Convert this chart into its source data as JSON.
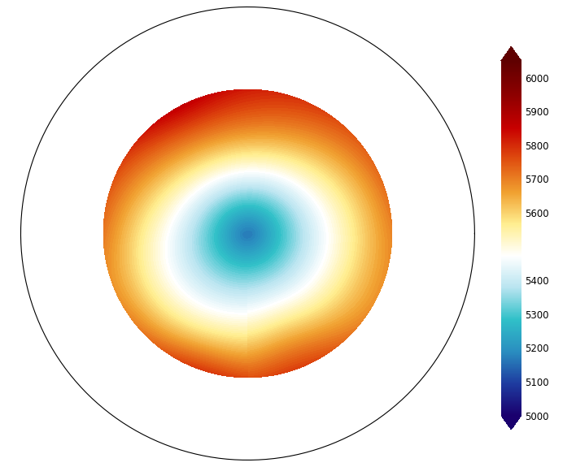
{
  "colorbar_ticks": [
    5000,
    5100,
    5200,
    5300,
    5400,
    5600,
    5700,
    5800,
    5900,
    6000
  ],
  "cmap_nodes": [
    [
      0.0,
      "#1a006e"
    ],
    [
      0.09,
      "#1e3ca0"
    ],
    [
      0.18,
      "#2a8ec0"
    ],
    [
      0.27,
      "#30c0c8"
    ],
    [
      0.36,
      "#b8e4f0"
    ],
    [
      0.45,
      "#ffffff"
    ],
    [
      0.54,
      "#ffee90"
    ],
    [
      0.63,
      "#f0a030"
    ],
    [
      0.72,
      "#e05010"
    ],
    [
      0.81,
      "#c80000"
    ],
    [
      0.9,
      "#900000"
    ],
    [
      1.0,
      "#600000"
    ]
  ],
  "vmin": 5000,
  "vmax": 6050,
  "lat_min_deg": 20,
  "fig_width": 7.08,
  "fig_height": 5.75,
  "dpi": 100,
  "background_color": "#ffffff"
}
